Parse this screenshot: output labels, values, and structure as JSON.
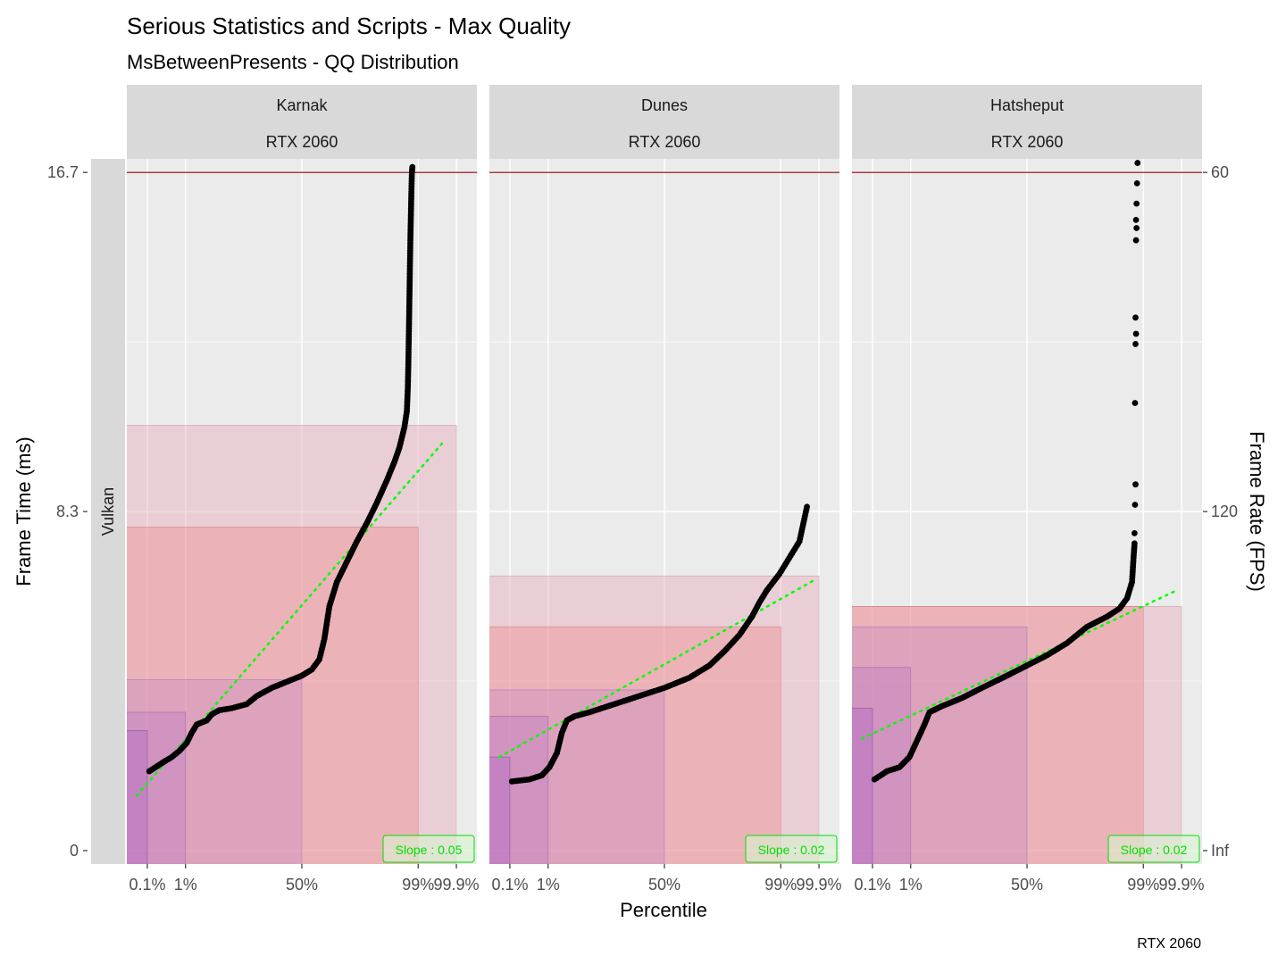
{
  "chart_data": {
    "type": "scatter",
    "title": "Serious Statistics and Scripts - Max Quality",
    "subtitle": "MsBetweenPresents - QQ Distribution",
    "xlabel": "Percentile",
    "ylabel": "Frame Time (ms)",
    "ylabel_right": "Frame Rate (FPS)",
    "caption": "RTX 2060",
    "row_strip": "Vulkan",
    "x_ticks": [
      "0.1%",
      "1%",
      "50%",
      "99%",
      "99.9%"
    ],
    "y_ticks_left": [
      "0",
      "8.3",
      "16.7"
    ],
    "y_ticks_left_values": [
      0,
      8.333,
      16.667
    ],
    "y_ticks_right": [
      "Inf",
      "120",
      "60"
    ],
    "ylim": [
      -0.33,
      17
    ],
    "reference_line_ms": 16.667,
    "colors": {
      "points": "#000000",
      "fit_line": "#00ff00",
      "reference_line": "#8b0000",
      "rect_outer": "#e7a1b5",
      "rect_inner": "#f07a7a",
      "rect_low": "#b56fc8",
      "panel_bg": "#ebebeb",
      "strip_bg": "#d9d9d9"
    },
    "panels": [
      {
        "name": "Karnak",
        "gpu": "RTX 2060",
        "slope_label": "Slope : 0.05",
        "fit": [
          [
            -3.3,
            1.35
          ],
          [
            2.8,
            10.0
          ]
        ],
        "quantile_ms": {
          "q001": 2.95,
          "q01": 3.4,
          "q50": 4.2,
          "q99": 7.95,
          "q999": 10.45
        },
        "curve": [
          [
            -3.05,
            1.95
          ],
          [
            -2.8,
            2.15
          ],
          [
            -2.6,
            2.3
          ],
          [
            -2.45,
            2.45
          ],
          [
            -2.3,
            2.65
          ],
          [
            -2.2,
            2.9
          ],
          [
            -2.1,
            3.1
          ],
          [
            -2.0,
            3.15
          ],
          [
            -1.9,
            3.2
          ],
          [
            -1.8,
            3.35
          ],
          [
            -1.65,
            3.45
          ],
          [
            -1.4,
            3.5
          ],
          [
            -1.1,
            3.6
          ],
          [
            -0.9,
            3.8
          ],
          [
            -0.6,
            4.0
          ],
          [
            -0.3,
            4.15
          ],
          [
            0.0,
            4.3
          ],
          [
            0.2,
            4.45
          ],
          [
            0.35,
            4.7
          ],
          [
            0.45,
            5.2
          ],
          [
            0.55,
            6.0
          ],
          [
            0.7,
            6.6
          ],
          [
            0.9,
            7.1
          ],
          [
            1.1,
            7.6
          ],
          [
            1.3,
            8.05
          ],
          [
            1.5,
            8.55
          ],
          [
            1.7,
            9.1
          ],
          [
            1.85,
            9.55
          ],
          [
            1.95,
            9.9
          ],
          [
            2.05,
            10.4
          ],
          [
            2.1,
            10.8
          ],
          [
            2.12,
            11.4
          ],
          [
            2.13,
            12.0
          ],
          [
            2.14,
            12.7
          ],
          [
            2.15,
            13.5
          ],
          [
            2.16,
            14.3
          ],
          [
            2.17,
            15.0
          ],
          [
            2.18,
            15.6
          ],
          [
            2.19,
            16.2
          ],
          [
            2.2,
            16.65
          ],
          [
            2.21,
            16.8
          ]
        ]
      },
      {
        "name": "Dunes",
        "gpu": "RTX 2060",
        "slope_label": "Slope : 0.02",
        "fit": [
          [
            -3.3,
            2.3
          ],
          [
            3.0,
            6.65
          ]
        ],
        "quantile_ms": {
          "q001": 2.3,
          "q01": 3.3,
          "q50": 3.95,
          "q99": 5.5,
          "q999": 6.75
        },
        "curve": [
          [
            -3.05,
            1.7
          ],
          [
            -2.7,
            1.75
          ],
          [
            -2.45,
            1.85
          ],
          [
            -2.3,
            2.05
          ],
          [
            -2.15,
            2.4
          ],
          [
            -2.05,
            2.9
          ],
          [
            -1.95,
            3.2
          ],
          [
            -1.8,
            3.3
          ],
          [
            -1.5,
            3.4
          ],
          [
            -1.0,
            3.6
          ],
          [
            -0.5,
            3.8
          ],
          [
            0.0,
            4.0
          ],
          [
            0.5,
            4.25
          ],
          [
            0.9,
            4.55
          ],
          [
            1.2,
            4.9
          ],
          [
            1.5,
            5.3
          ],
          [
            1.75,
            5.75
          ],
          [
            1.9,
            6.1
          ],
          [
            2.05,
            6.4
          ],
          [
            2.3,
            6.8
          ],
          [
            2.55,
            7.3
          ],
          [
            2.7,
            7.6
          ],
          [
            2.85,
            8.45
          ]
        ]
      },
      {
        "name": "Hatsheput",
        "gpu": "RTX 2060",
        "slope_label": "Slope : 0.02",
        "fit": [
          [
            -3.3,
            2.75
          ],
          [
            3.0,
            6.4
          ]
        ],
        "quantile_ms": {
          "q001": 3.5,
          "q01": 4.5,
          "q50": 5.5,
          "q99": 6.0,
          "q999": 6.0
        },
        "curve": [
          [
            -3.05,
            1.75
          ],
          [
            -2.8,
            1.95
          ],
          [
            -2.55,
            2.05
          ],
          [
            -2.35,
            2.3
          ],
          [
            -2.2,
            2.7
          ],
          [
            -2.05,
            3.1
          ],
          [
            -1.95,
            3.4
          ],
          [
            -1.7,
            3.55
          ],
          [
            -1.3,
            3.75
          ],
          [
            -0.9,
            4.0
          ],
          [
            -0.4,
            4.3
          ],
          [
            0.0,
            4.55
          ],
          [
            0.4,
            4.8
          ],
          [
            0.8,
            5.1
          ],
          [
            1.2,
            5.5
          ],
          [
            1.6,
            5.75
          ],
          [
            1.85,
            5.95
          ],
          [
            2.0,
            6.2
          ],
          [
            2.1,
            6.6
          ],
          [
            2.13,
            7.2
          ],
          [
            2.15,
            7.55
          ]
        ],
        "outliers": [
          [
            2.15,
            7.8
          ],
          [
            2.16,
            8.5
          ],
          [
            2.17,
            9.0
          ],
          [
            2.16,
            11.0
          ],
          [
            2.17,
            12.45
          ],
          [
            2.18,
            12.7
          ],
          [
            2.17,
            13.1
          ],
          [
            2.18,
            15.0
          ],
          [
            2.19,
            15.3
          ],
          [
            2.18,
            15.5
          ],
          [
            2.19,
            15.9
          ],
          [
            2.2,
            16.4
          ],
          [
            2.21,
            16.9
          ]
        ]
      }
    ]
  }
}
